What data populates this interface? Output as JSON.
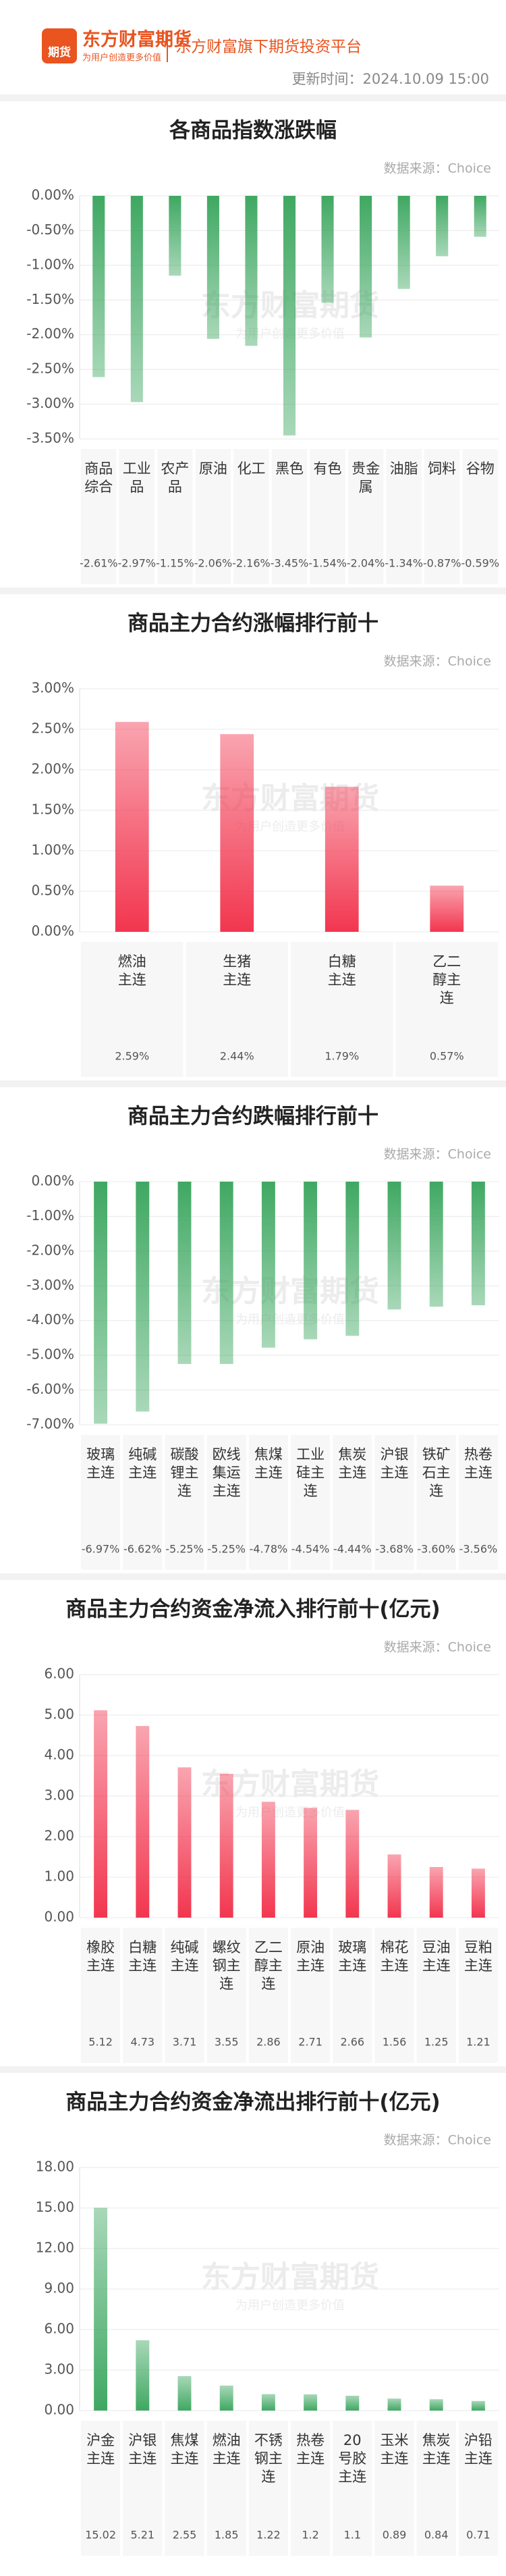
{
  "header": {
    "logo_text": "期货",
    "brand": "东方财富期货",
    "slogan": "为用户创造更多价值",
    "platform": "东方财富旗下期货投资平台",
    "update": "更新时间：2024.10.09 15:00"
  },
  "chart_data": [
    {
      "type": "bar",
      "title": "各商品指数涨跌幅",
      "source": "数据来源：Choice",
      "color": "#3fa862",
      "categories": [
        "商品综合",
        "工业品",
        "农产品",
        "原油",
        "化工",
        "黑色",
        "有色",
        "贵金属",
        "油脂",
        "饲料",
        "谷物"
      ],
      "values": [
        -2.61,
        -2.97,
        -1.15,
        -2.06,
        -2.16,
        -3.45,
        -1.54,
        -2.04,
        -1.34,
        -0.87,
        -0.59
      ],
      "value_labels": [
        "-2.61%",
        "-2.97%",
        "-1.15%",
        "-2.06%",
        "-2.16%",
        "-3.45%",
        "-1.54%",
        "-2.04%",
        "-1.34%",
        "-0.87%",
        "-0.59%"
      ],
      "ylim": [
        -3.5,
        0
      ],
      "yticks": [
        {
          "value": 0,
          "label": "0.00%"
        },
        {
          "value": -0.5,
          "label": "-0.50%"
        },
        {
          "value": -1,
          "label": "-1.00%"
        },
        {
          "value": -1.5,
          "label": "-1.50%"
        },
        {
          "value": -2,
          "label": "-2.00%"
        },
        {
          "value": -2.5,
          "label": "-2.50%"
        },
        {
          "value": -3,
          "label": "-3.00%"
        },
        {
          "value": -3.5,
          "label": "-3.50%"
        }
      ],
      "grid": true
    },
    {
      "type": "bar",
      "title": "商品主力合约涨幅排行前十",
      "source": "数据来源：Choice",
      "color": "#f2364f",
      "categories": [
        "燃油主连",
        "生猪主连",
        "白糖主连",
        "乙二醇主连"
      ],
      "values": [
        2.59,
        2.44,
        1.79,
        0.57
      ],
      "value_labels": [
        "2.59%",
        "2.44%",
        "1.79%",
        "0.57%"
      ],
      "ylim": [
        0,
        3
      ],
      "yticks": [
        {
          "value": 0,
          "label": "0.00%"
        },
        {
          "value": 0.5,
          "label": "0.50%"
        },
        {
          "value": 1,
          "label": "1.00%"
        },
        {
          "value": 1.5,
          "label": "1.50%"
        },
        {
          "value": 2,
          "label": "2.00%"
        },
        {
          "value": 2.5,
          "label": "2.50%"
        },
        {
          "value": 3,
          "label": "3.00%"
        }
      ],
      "grid": true
    },
    {
      "type": "bar",
      "title": "商品主力合约跌幅排行前十",
      "source": "数据来源：Choice",
      "color": "#3fa862",
      "categories": [
        "玻璃主连",
        "纯碱主连",
        "碳酸锂主连",
        "欧线集运主连",
        "焦煤主连",
        "工业硅主连",
        "焦炭主连",
        "沪银主连",
        "铁矿石主连",
        "热卷主连"
      ],
      "values": [
        -6.97,
        -6.62,
        -5.25,
        -5.25,
        -4.78,
        -4.54,
        -4.44,
        -3.68,
        -3.6,
        -3.56
      ],
      "value_labels": [
        "-6.97%",
        "-6.62%",
        "-5.25%",
        "-5.25%",
        "-4.78%",
        "-4.54%",
        "-4.44%",
        "-3.68%",
        "-3.60%",
        "-3.56%"
      ],
      "ylim": [
        -7,
        0
      ],
      "yticks": [
        {
          "value": 0,
          "label": "0.00%"
        },
        {
          "value": -1,
          "label": "-1.00%"
        },
        {
          "value": -2,
          "label": "-2.00%"
        },
        {
          "value": -3,
          "label": "-3.00%"
        },
        {
          "value": -4,
          "label": "-4.00%"
        },
        {
          "value": -5,
          "label": "-5.00%"
        },
        {
          "value": -6,
          "label": "-6.00%"
        },
        {
          "value": -7,
          "label": "-7.00%"
        }
      ],
      "grid": true
    },
    {
      "type": "bar",
      "title": "商品主力合约资金净流入排行前十(亿元)",
      "source": "数据来源：Choice",
      "color": "#f2364f",
      "categories": [
        "橡胶主连",
        "白糖主连",
        "纯碱主连",
        "螺纹钢主连",
        "乙二醇主连",
        "原油主连",
        "玻璃主连",
        "棉花主连",
        "豆油主连",
        "豆粕主连"
      ],
      "values": [
        5.12,
        4.73,
        3.71,
        3.55,
        2.86,
        2.71,
        2.66,
        1.56,
        1.25,
        1.21
      ],
      "ylim": [
        0,
        6
      ],
      "yticks": [
        {
          "value": 0,
          "label": "0.00"
        },
        {
          "value": 1,
          "label": "1.00"
        },
        {
          "value": 2,
          "label": "2.00"
        },
        {
          "value": 3,
          "label": "3.00"
        },
        {
          "value": 4,
          "label": "4.00"
        },
        {
          "value": 5,
          "label": "5.00"
        },
        {
          "value": 6,
          "label": "6.00"
        }
      ],
      "grid": true
    },
    {
      "type": "bar",
      "title": "商品主力合约资金净流出排行前十(亿元)",
      "source": "数据来源：Choice",
      "color": "#3fa862",
      "categories": [
        "沪金主连",
        "沪银主连",
        "焦煤主连",
        "燃油主连",
        "不锈钢主连",
        "热卷主连",
        "20号胶主连",
        "玉米主连",
        "焦炭主连",
        "沪铅主连"
      ],
      "values": [
        15.02,
        5.21,
        2.55,
        1.85,
        1.22,
        1.2,
        1.1,
        0.89,
        0.84,
        0.71
      ],
      "ylim": [
        0,
        18
      ],
      "yticks": [
        {
          "value": 0,
          "label": "0.00"
        },
        {
          "value": 3,
          "label": "3.00"
        },
        {
          "value": 6,
          "label": "6.00"
        },
        {
          "value": 9,
          "label": "9.00"
        },
        {
          "value": 12,
          "label": "12.00"
        },
        {
          "value": 15,
          "label": "15.00"
        },
        {
          "value": 18,
          "label": "18.00"
        }
      ],
      "grid": true
    }
  ]
}
